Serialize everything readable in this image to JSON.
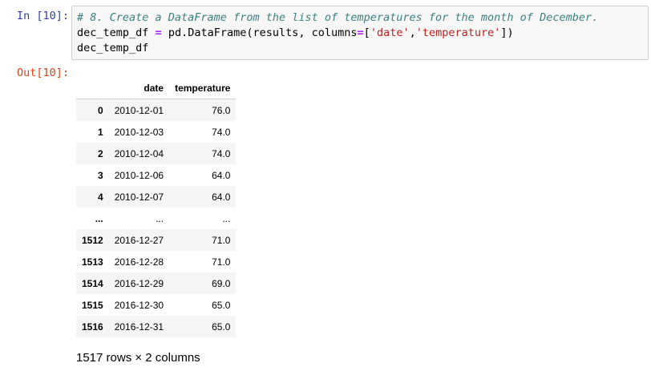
{
  "input_prompt": "In [10]:",
  "output_prompt": "Out[10]:",
  "code": {
    "comment": "# 8. Create a DataFrame from the list of temperatures for the month of December.",
    "line2_var": "dec_temp_df ",
    "line2_op": "=",
    "line2_call": " pd.DataFrame(results, columns",
    "line2_op2": "=",
    "line2_open": "[",
    "line2_str1": "'date'",
    "line2_comma": ",",
    "line2_str2": "'temperature'",
    "line2_close": "])",
    "line3": "dec_temp_df"
  },
  "table": {
    "headers": [
      "",
      "date",
      "temperature"
    ],
    "rows": [
      [
        "0",
        "2010-12-01",
        "76.0"
      ],
      [
        "1",
        "2010-12-03",
        "74.0"
      ],
      [
        "2",
        "2010-12-04",
        "74.0"
      ],
      [
        "3",
        "2010-12-06",
        "64.0"
      ],
      [
        "4",
        "2010-12-07",
        "64.0"
      ],
      [
        "...",
        "...",
        "..."
      ],
      [
        "1512",
        "2016-12-27",
        "71.0"
      ],
      [
        "1513",
        "2016-12-28",
        "71.0"
      ],
      [
        "1514",
        "2016-12-29",
        "69.0"
      ],
      [
        "1515",
        "2016-12-30",
        "65.0"
      ],
      [
        "1516",
        "2016-12-31",
        "65.0"
      ]
    ]
  },
  "shape_text": "1517 rows × 2 columns"
}
